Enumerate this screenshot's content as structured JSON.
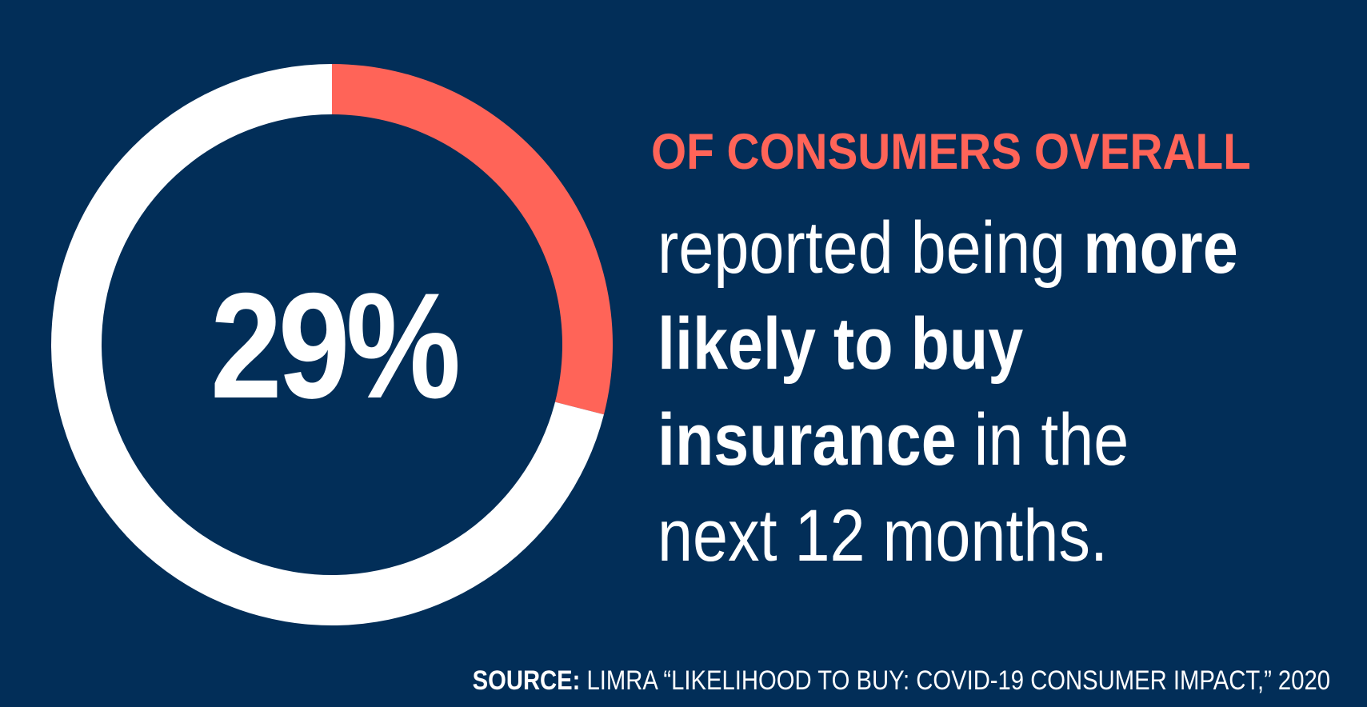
{
  "colors": {
    "background": "#022e58",
    "accent": "#ff6458",
    "remainder": "#ffffff",
    "text": "#ffffff"
  },
  "chart_data": {
    "type": "pie",
    "variant": "donut",
    "values": [
      29,
      71
    ],
    "series": [
      {
        "value": 29,
        "color": "#ff6458"
      },
      {
        "value": 71,
        "color": "#ffffff"
      }
    ],
    "center_label": "29%"
  },
  "headline": "OF CONSUMERS OVERALL",
  "body": {
    "line1_regular": "reported being ",
    "line1_bold": "more",
    "line2_bold": "likely to buy",
    "line3_bold": "insurance",
    "line3_regular": " in the",
    "line4_regular": "next 12 months."
  },
  "source": {
    "label": "SOURCE:",
    "text": " LIMRA “LIKELIHOOD TO BUY: COVID-19 CONSUMER IMPACT,” 2020"
  }
}
